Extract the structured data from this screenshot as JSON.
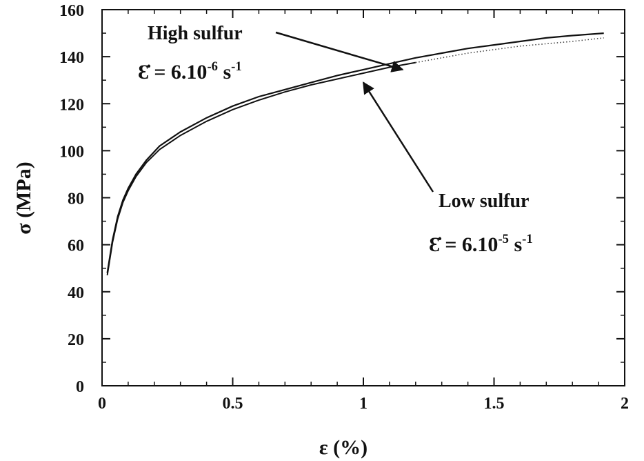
{
  "chart_data": {
    "type": "line",
    "xlabel": "ε (%)",
    "ylabel": "σ (MPa)",
    "xlim": [
      0,
      2
    ],
    "ylim": [
      0,
      160
    ],
    "xticks": [
      0,
      0.5,
      1,
      1.5,
      2
    ],
    "xtick_labels": [
      "0",
      "0.5",
      "1",
      "1.5",
      "2"
    ],
    "yticks": [
      0,
      20,
      40,
      60,
      80,
      100,
      120,
      140,
      160
    ],
    "ytick_labels": [
      "0",
      "20",
      "40",
      "60",
      "80",
      "100",
      "120",
      "140",
      "160"
    ],
    "grid": false,
    "series": [
      {
        "name": "High sulfur",
        "rate_label": "Ɛ̇ = 6.10-6 s-1",
        "style": "solid",
        "x": [
          0.02,
          0.04,
          0.06,
          0.08,
          0.1,
          0.13,
          0.17,
          0.22,
          0.3,
          0.4,
          0.5,
          0.6,
          0.7,
          0.8,
          0.9,
          1.0,
          1.1,
          1.2,
          1.3,
          1.4,
          1.5,
          1.6,
          1.7,
          1.8,
          1.92
        ],
        "y": [
          48,
          62,
          72,
          79,
          84,
          90,
          96,
          102,
          108,
          114,
          119,
          123,
          126,
          129,
          132,
          134.5,
          137,
          139.5,
          141.5,
          143.5,
          145,
          146.5,
          148,
          149,
          150
        ]
      },
      {
        "name": "Low sulfur",
        "rate_label": "Ɛ̇ = 6.10-5 s-1",
        "style": "dotted-tail",
        "x": [
          0.02,
          0.04,
          0.06,
          0.08,
          0.1,
          0.13,
          0.17,
          0.22,
          0.3,
          0.4,
          0.5,
          0.6,
          0.7,
          0.8,
          0.9,
          1.0,
          1.1,
          1.2,
          1.3,
          1.4,
          1.5,
          1.6,
          1.7,
          1.8,
          1.92
        ],
        "y": [
          47,
          61,
          71,
          78,
          83,
          89,
          95,
          100.5,
          106.5,
          112.5,
          117.5,
          121.5,
          125,
          128,
          130.5,
          133,
          135.5,
          137.5,
          139.5,
          141.5,
          143,
          144.5,
          145.5,
          146.5,
          148
        ]
      }
    ],
    "annotations": [
      {
        "name": "label-high-sulfur",
        "text": "High sulfur",
        "rate_prefix": "Ɛ̇ = 6.10",
        "rate_exp": "-6",
        "rate_unit": " s",
        "rate_unit_exp": "-1",
        "arrow_to": [
          1.15,
          134.5
        ]
      },
      {
        "name": "label-low-sulfur",
        "text": "Low sulfur",
        "rate_prefix": "Ɛ̇ = 6.10",
        "rate_exp": "-5",
        "rate_unit": " s",
        "rate_unit_exp": "-1",
        "arrow_to": [
          1.0,
          129
        ]
      }
    ]
  }
}
